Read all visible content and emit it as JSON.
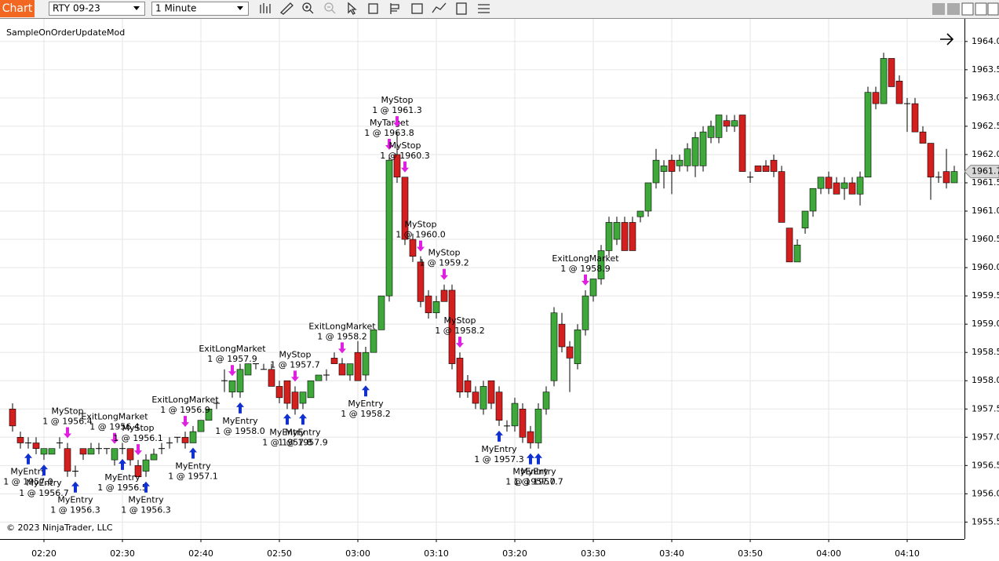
{
  "toolbar": {
    "app_label": "Chart",
    "instrument": "RTY 09-23",
    "interval": "1 Minute"
  },
  "chart_data": {
    "type": "candlestick",
    "title": "SampleOnOrderUpdateMod",
    "copyright": "© 2023 NinjaTrader, LLC",
    "up_color": "#3fa83a",
    "down_color": "#d41f1f",
    "grid": true,
    "last_price": 1961.7,
    "ylim": [
      1955.2,
      1964.4
    ],
    "yticks": [
      {
        "value": 1955.5,
        "label": "1955.5"
      },
      {
        "value": 1956,
        "label": "1956.0"
      },
      {
        "value": 1956.5,
        "label": "1956.5"
      },
      {
        "value": 1957,
        "label": "1957.0"
      },
      {
        "value": 1957.5,
        "label": "1957.5"
      },
      {
        "value": 1958,
        "label": "1958.0"
      },
      {
        "value": 1958.5,
        "label": "1958.5"
      },
      {
        "value": 1959,
        "label": "1959.0"
      },
      {
        "value": 1959.5,
        "label": "1959.5"
      },
      {
        "value": 1960,
        "label": "1960.0"
      },
      {
        "value": 1960.5,
        "label": "1960.5"
      },
      {
        "value": 1961,
        "label": "1961.0"
      },
      {
        "value": 1961.5,
        "label": "1961.5"
      },
      {
        "value": 1962,
        "label": "1962.0"
      },
      {
        "value": 1962.5,
        "label": "1962.5"
      },
      {
        "value": 1963,
        "label": "1963.0"
      },
      {
        "value": 1963.5,
        "label": "1963.5"
      },
      {
        "value": 1964,
        "label": "1964.0"
      }
    ],
    "categories": [
      null,
      null,
      null,
      null,
      "02:20",
      null,
      null,
      null,
      null,
      null,
      null,
      null,
      null,
      null,
      "02:30",
      null,
      null,
      null,
      null,
      null,
      null,
      null,
      null,
      null,
      "02:40",
      null,
      null,
      null,
      null,
      null,
      null,
      null,
      null,
      null,
      "02:50",
      null,
      null,
      null,
      null,
      null,
      null,
      null,
      null,
      null,
      "03:00",
      null,
      null,
      null,
      null,
      null,
      null,
      null,
      null,
      null,
      "03:10",
      null,
      null,
      null,
      null,
      null,
      null,
      null,
      null,
      null,
      "03:20",
      null,
      null,
      null,
      null,
      null,
      null,
      null,
      null,
      null,
      "03:30",
      null,
      null,
      null,
      null,
      null,
      null,
      null,
      null,
      null,
      "03:40",
      null,
      null,
      null,
      null,
      null,
      null,
      null,
      null,
      null,
      "03:50",
      null,
      null,
      null,
      null,
      null,
      null,
      null,
      null,
      null,
      "04:00",
      null,
      null,
      null,
      null,
      null,
      null,
      null,
      null,
      null,
      "04:10",
      null,
      null,
      null,
      null,
      null,
      null
    ],
    "ohlc": [
      [
        1957.5,
        1957.6,
        1957.1,
        1957.2
      ],
      [
        1957.0,
        1957.1,
        1956.8,
        1956.9
      ],
      [
        1956.9,
        1957.0,
        1956.8,
        1956.9
      ],
      [
        1956.9,
        1957.0,
        1956.7,
        1956.8
      ],
      [
        1956.7,
        1956.8,
        1956.6,
        1956.8
      ],
      [
        1956.7,
        1956.8,
        1956.7,
        1956.8
      ],
      [
        1956.9,
        1957.0,
        1956.8,
        1956.9
      ],
      [
        1956.8,
        1956.9,
        1956.3,
        1956.4
      ],
      [
        1956.4,
        1956.5,
        1956.3,
        1956.4
      ],
      [
        1956.8,
        1956.8,
        1956.6,
        1956.7
      ],
      [
        1956.7,
        1956.9,
        1956.7,
        1956.8
      ],
      [
        1956.8,
        1956.9,
        1956.7,
        1956.8
      ],
      [
        1956.8,
        1956.8,
        1956.7,
        1956.8
      ],
      [
        1956.6,
        1956.8,
        1956.5,
        1956.8
      ],
      [
        1956.8,
        1956.9,
        1956.7,
        1956.8
      ],
      [
        1956.8,
        1956.8,
        1956.5,
        1956.6
      ],
      [
        1956.5,
        1956.6,
        1956.3,
        1956.3
      ],
      [
        1956.4,
        1956.7,
        1956.3,
        1956.6
      ],
      [
        1956.6,
        1956.8,
        1956.6,
        1956.7
      ],
      [
        1956.8,
        1956.9,
        1956.7,
        1956.8
      ],
      [
        1956.9,
        1957.0,
        1956.8,
        1956.9
      ],
      [
        1957.0,
        1957.0,
        1956.9,
        1957.0
      ],
      [
        1957.0,
        1957.1,
        1956.8,
        1956.9
      ],
      [
        1956.9,
        1957.2,
        1956.9,
        1957.1
      ],
      [
        1957.1,
        1957.3,
        1957.1,
        1957.3
      ],
      [
        1957.3,
        1957.5,
        1957.3,
        1957.5
      ],
      [
        1957.6,
        1957.7,
        1957.5,
        1957.6
      ],
      [
        1958.0,
        1958.2,
        1957.8,
        1958.0
      ],
      [
        1957.8,
        1958.0,
        1957.7,
        1958.0
      ],
      [
        1957.8,
        1958.3,
        1957.7,
        1958.2
      ],
      [
        1958.1,
        1958.3,
        1958.1,
        1958.3
      ],
      [
        1958.3,
        1958.3,
        1958.2,
        1958.3
      ],
      [
        1958.2,
        1958.3,
        1958.2,
        1958.2
      ],
      [
        1958.2,
        1958.3,
        1957.9,
        1957.9
      ],
      [
        1957.9,
        1958.0,
        1957.6,
        1957.7
      ],
      [
        1958.0,
        1958.0,
        1957.5,
        1957.6
      ],
      [
        1957.8,
        1957.9,
        1957.4,
        1957.5
      ],
      [
        1957.6,
        1957.8,
        1957.5,
        1957.8
      ],
      [
        1957.7,
        1958.0,
        1957.7,
        1958.0
      ],
      [
        1958.0,
        1958.1,
        1958.0,
        1958.1
      ],
      [
        1958.1,
        1958.2,
        1958.0,
        1958.1
      ],
      [
        1958.4,
        1958.5,
        1958.3,
        1958.3
      ],
      [
        1958.3,
        1958.4,
        1958.1,
        1958.1
      ],
      [
        1958.1,
        1958.3,
        1958.0,
        1958.3
      ],
      [
        1958.5,
        1958.7,
        1958.0,
        1958.0
      ],
      [
        1958.1,
        1958.6,
        1958.0,
        1958.5
      ],
      [
        1958.5,
        1958.9,
        1958.5,
        1958.9
      ],
      [
        1958.9,
        1959.5,
        1958.9,
        1959.5
      ],
      [
        1959.5,
        1962.0,
        1959.4,
        1961.9
      ],
      [
        1962.0,
        1962.4,
        1961.5,
        1961.6
      ],
      [
        1961.6,
        1961.6,
        1960.4,
        1960.5
      ],
      [
        1960.5,
        1960.6,
        1960.1,
        1960.2
      ],
      [
        1960.1,
        1960.2,
        1959.3,
        1959.4
      ],
      [
        1959.5,
        1959.6,
        1959.1,
        1959.2
      ],
      [
        1959.2,
        1959.5,
        1959.1,
        1959.4
      ],
      [
        1959.6,
        1959.7,
        1959.4,
        1959.4
      ],
      [
        1959.6,
        1959.7,
        1958.2,
        1958.3
      ],
      [
        1958.4,
        1958.5,
        1957.7,
        1957.8
      ],
      [
        1958.0,
        1958.1,
        1957.7,
        1957.8
      ],
      [
        1957.8,
        1957.9,
        1957.5,
        1957.6
      ],
      [
        1957.5,
        1958.0,
        1957.4,
        1957.9
      ],
      [
        1958.0,
        1958.0,
        1957.5,
        1957.6
      ],
      [
        1957.8,
        1957.9,
        1957.2,
        1957.3
      ],
      [
        1957.2,
        1957.3,
        1957.1,
        1957.2
      ],
      [
        1957.2,
        1957.7,
        1957.1,
        1957.6
      ],
      [
        1957.5,
        1957.6,
        1956.9,
        1957.0
      ],
      [
        1957.1,
        1957.2,
        1956.8,
        1956.9
      ],
      [
        1956.9,
        1957.6,
        1956.8,
        1957.5
      ],
      [
        1957.5,
        1957.9,
        1957.4,
        1957.8
      ],
      [
        1958.0,
        1959.3,
        1957.9,
        1959.2
      ],
      [
        1959.0,
        1959.2,
        1958.5,
        1958.6
      ],
      [
        1958.6,
        1958.7,
        1957.8,
        1958.4
      ],
      [
        1958.3,
        1959.0,
        1958.2,
        1958.9
      ],
      [
        1958.9,
        1959.6,
        1958.8,
        1959.5
      ],
      [
        1959.5,
        1959.8,
        1959.4,
        1959.8
      ],
      [
        1959.8,
        1960.4,
        1959.7,
        1960.3
      ],
      [
        1960.3,
        1960.9,
        1960.2,
        1960.8
      ],
      [
        1960.5,
        1960.9,
        1960.4,
        1960.8
      ],
      [
        1960.8,
        1960.9,
        1960.3,
        1960.3
      ],
      [
        1960.8,
        1960.9,
        1960.3,
        1960.3
      ],
      [
        1960.9,
        1961.0,
        1960.8,
        1961.0
      ],
      [
        1961.0,
        1961.5,
        1960.9,
        1961.5
      ],
      [
        1961.5,
        1962.1,
        1961.4,
        1961.9
      ],
      [
        1961.7,
        1961.9,
        1961.4,
        1961.8
      ],
      [
        1961.9,
        1962.0,
        1961.3,
        1961.7
      ],
      [
        1961.8,
        1962.0,
        1961.7,
        1961.9
      ],
      [
        1961.8,
        1962.2,
        1961.7,
        1962.1
      ],
      [
        1961.8,
        1962.4,
        1961.6,
        1962.3
      ],
      [
        1961.8,
        1962.5,
        1961.7,
        1962.4
      ],
      [
        1962.3,
        1962.6,
        1962.2,
        1962.5
      ],
      [
        1962.3,
        1962.7,
        1962.2,
        1962.7
      ],
      [
        1962.6,
        1962.7,
        1962.4,
        1962.5
      ],
      [
        1962.5,
        1962.7,
        1962.4,
        1962.6
      ],
      [
        1962.7,
        1962.7,
        1961.7,
        1961.7
      ],
      [
        1961.6,
        1961.7,
        1961.5,
        1961.6
      ],
      [
        1961.8,
        1961.8,
        1961.7,
        1961.7
      ],
      [
        1961.8,
        1961.9,
        1961.7,
        1961.7
      ],
      [
        1961.9,
        1962.0,
        1961.6,
        1961.7
      ],
      [
        1961.7,
        1961.8,
        1960.8,
        1960.8
      ],
      [
        1960.7,
        1960.7,
        1960.1,
        1960.1
      ],
      [
        1960.1,
        1960.5,
        1960.1,
        1960.4
      ],
      [
        1960.7,
        1961.0,
        1960.6,
        1961.0
      ],
      [
        1961.0,
        1961.4,
        1960.9,
        1961.4
      ],
      [
        1961.4,
        1961.6,
        1961.3,
        1961.6
      ],
      [
        1961.6,
        1961.7,
        1961.3,
        1961.4
      ],
      [
        1961.5,
        1961.6,
        1961.3,
        1961.3
      ],
      [
        1961.4,
        1961.6,
        1961.2,
        1961.5
      ],
      [
        1961.5,
        1961.6,
        1961.3,
        1961.3
      ],
      [
        1961.3,
        1961.7,
        1961.1,
        1961.6
      ],
      [
        1961.6,
        1963.2,
        1961.6,
        1963.1
      ],
      [
        1963.1,
        1963.2,
        1962.8,
        1962.9
      ],
      [
        1962.9,
        1963.8,
        1962.9,
        1963.7
      ],
      [
        1963.7,
        1963.7,
        1963.2,
        1963.2
      ],
      [
        1963.3,
        1963.4,
        1962.9,
        1962.9
      ],
      [
        1962.9,
        1963.0,
        1962.4,
        1962.9
      ],
      [
        1962.9,
        1963.0,
        1962.4,
        1962.4
      ],
      [
        1962.4,
        1962.5,
        1962.2,
        1962.2
      ],
      [
        1962.2,
        1962.2,
        1961.2,
        1961.6
      ],
      [
        1961.6,
        1961.7,
        1961.5,
        1961.6
      ],
      [
        1961.7,
        1962.1,
        1961.4,
        1961.5
      ],
      [
        1961.5,
        1961.8,
        1961.5,
        1961.7
      ]
    ],
    "orders": [
      {
        "bar": 2,
        "side": "buy",
        "name": "MyEntry",
        "text": "1 @ 1957.0"
      },
      {
        "bar": 4,
        "side": "buy",
        "name": "MyEntry",
        "text": "1 @ 1956.7"
      },
      {
        "bar": 7,
        "side": "sell",
        "name": "MyStop",
        "text": "1 @ 1956.4"
      },
      {
        "bar": 8,
        "side": "buy",
        "name": "MyEntry",
        "text": "1 @ 1956.3"
      },
      {
        "bar": 13,
        "side": "sell",
        "name": "ExitLongMarket",
        "text": "1 @ 1956.4"
      },
      {
        "bar": 14,
        "side": "buy",
        "name": "MyEntry",
        "text": "1 @ 1956.5"
      },
      {
        "bar": 16,
        "side": "sell",
        "name": "MyStop",
        "text": "1 @ 1956.1"
      },
      {
        "bar": 17,
        "side": "buy",
        "name": "MyEntry",
        "text": "1 @ 1956.3"
      },
      {
        "bar": 22,
        "side": "sell",
        "name": "ExitLongMarket",
        "text": "1 @ 1956.9"
      },
      {
        "bar": 23,
        "side": "buy",
        "name": "MyEntry",
        "text": "1 @ 1957.1"
      },
      {
        "bar": 28,
        "side": "sell",
        "name": "ExitLongMarket",
        "text": "1 @ 1957.9"
      },
      {
        "bar": 29,
        "side": "buy",
        "name": "MyEntry",
        "text": "1 @ 1958.0"
      },
      {
        "bar": 35,
        "side": "buy",
        "name": "MyEntry",
        "text": "1 @ 1957.8"
      },
      {
        "bar": 36,
        "side": "sell",
        "name": "MyStop",
        "text": "1 @ 1957.7"
      },
      {
        "bar": 37,
        "side": "buy",
        "name": "MyEntry",
        "text": "1 @ 1957.9"
      },
      {
        "bar": 42,
        "side": "sell",
        "name": "ExitLongMarket",
        "text": "1 @ 1958.2"
      },
      {
        "bar": 45,
        "side": "buy",
        "name": "MyEntry",
        "text": "1 @ 1958.2"
      },
      {
        "bar": 48,
        "side": "sell",
        "name": "MyTarget",
        "text": "1 @ 1963.8"
      },
      {
        "bar": 49,
        "side": "sell",
        "name": "MyStop",
        "text": "1 @ 1961.3"
      },
      {
        "bar": 50,
        "side": "sell",
        "name": "MyStop",
        "text": "1 @ 1960.3"
      },
      {
        "bar": 52,
        "side": "sell",
        "name": "MyStop",
        "text": "1 @ 1960.0"
      },
      {
        "bar": 55,
        "side": "sell",
        "name": "MyStop",
        "text": "1 @ 1959.2"
      },
      {
        "bar": 57,
        "side": "sell",
        "name": "MyStop",
        "text": "1 @ 1958.2"
      },
      {
        "bar": 62,
        "side": "buy",
        "name": "MyEntry",
        "text": "1 @ 1957.3"
      },
      {
        "bar": 66,
        "side": "buy",
        "name": "MyEntry",
        "text": "1 @ 1957.0"
      },
      {
        "bar": 67,
        "side": "buy",
        "name": "MyEntry",
        "text": "1 @ 1957.7"
      },
      {
        "bar": 73,
        "side": "sell",
        "name": "ExitLongMarket",
        "text": "1 @ 1958.9"
      }
    ]
  }
}
